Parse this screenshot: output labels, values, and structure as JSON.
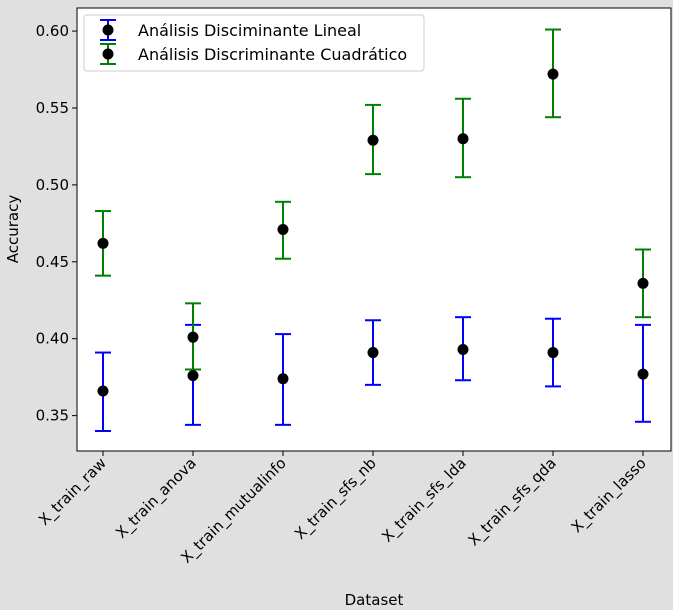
{
  "chart_data": {
    "type": "errorbar",
    "xlabel": "Dataset",
    "ylabel": "Accuracy",
    "categories": [
      "X_train_raw",
      "X_train_anova",
      "X_train_mutualinfo",
      "X_train_sfs_nb",
      "X_train_sfs_lda",
      "X_train_sfs_qda",
      "X_train_lasso"
    ],
    "ylim": [
      0.327,
      0.615
    ],
    "yticks": [
      "0.35",
      "0.40",
      "0.45",
      "0.50",
      "0.55",
      "0.60"
    ],
    "grid": false,
    "legend_position": "upper-left",
    "series": [
      {
        "name": "Análisis Disciminante Lineal",
        "color": "#0000ff",
        "values": [
          0.366,
          0.376,
          0.374,
          0.391,
          0.393,
          0.391,
          0.377
        ],
        "lower": [
          0.34,
          0.344,
          0.344,
          0.37,
          0.373,
          0.369,
          0.346
        ],
        "upper": [
          0.391,
          0.409,
          0.403,
          0.412,
          0.414,
          0.413,
          0.409
        ]
      },
      {
        "name": "Análisis Discriminante Cuadrático",
        "color": "#008000",
        "values": [
          0.462,
          0.401,
          0.471,
          0.529,
          0.53,
          0.572,
          0.436
        ],
        "lower": [
          0.441,
          0.38,
          0.452,
          0.507,
          0.505,
          0.544,
          0.414
        ],
        "upper": [
          0.483,
          0.423,
          0.489,
          0.552,
          0.556,
          0.601,
          0.458
        ]
      }
    ],
    "marker_color": "#000000"
  }
}
